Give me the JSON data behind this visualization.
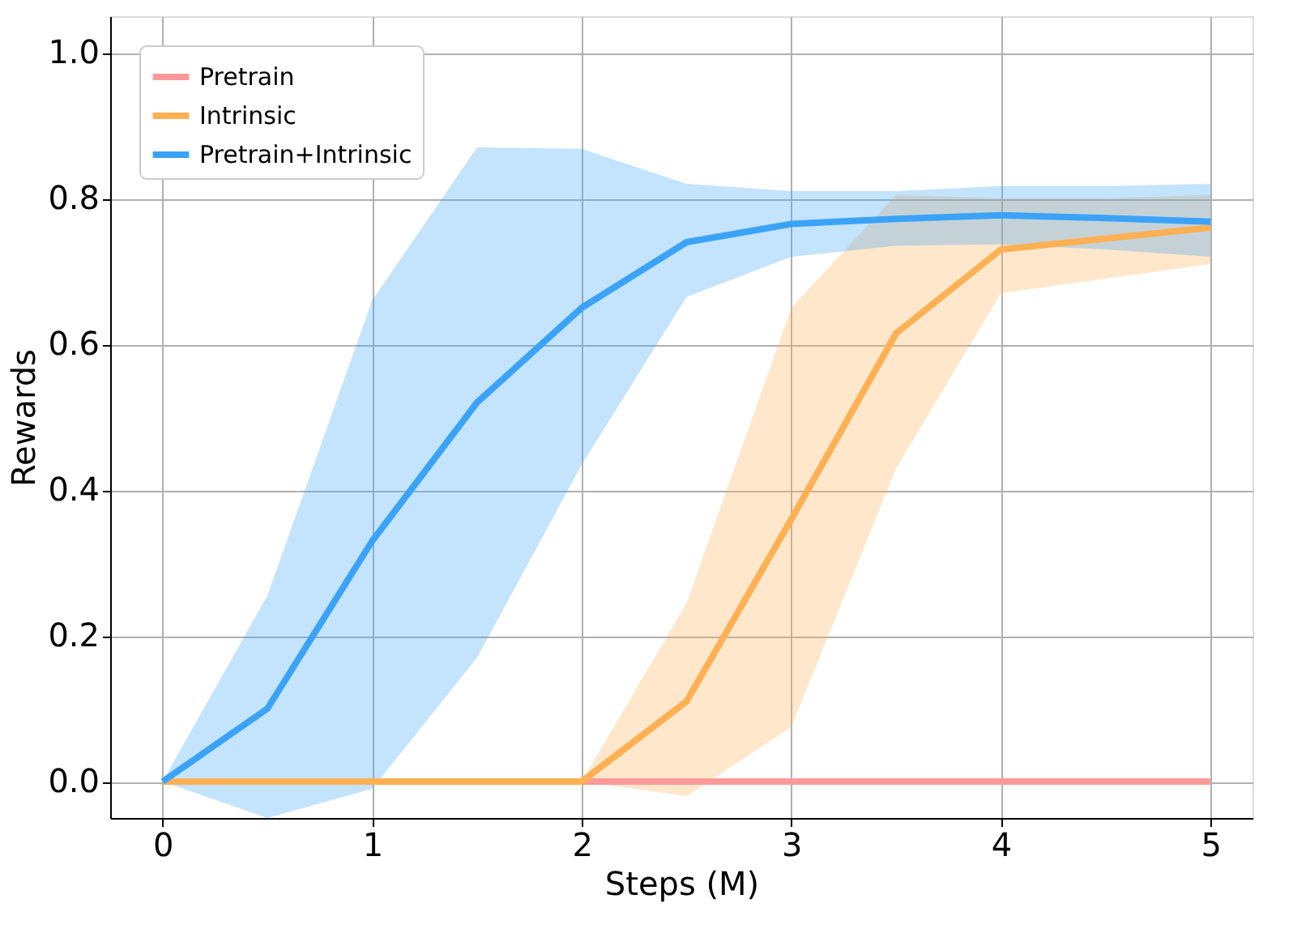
{
  "chart_data": {
    "type": "line",
    "xlabel": "Steps (M)",
    "ylabel": "Rewards",
    "x": [
      0,
      0.5,
      1,
      1.5,
      2,
      2.5,
      3,
      3.5,
      4,
      4.5,
      5
    ],
    "series": [
      {
        "name": "Pretrain",
        "color": "#ff9999",
        "values": [
          0,
          0,
          0,
          0,
          0,
          0,
          0,
          0,
          0,
          0,
          0
        ]
      },
      {
        "name": "Intrinsic",
        "color": "#ffb052",
        "values": [
          0,
          0,
          0,
          0,
          0,
          0.11,
          0.36,
          0.615,
          0.73,
          0.745,
          0.76
        ],
        "lower": [
          0,
          0,
          0,
          0,
          0,
          -0.02,
          0.075,
          0.43,
          0.67,
          0.69,
          0.71
        ],
        "upper": [
          0,
          0,
          0,
          0,
          0,
          0.245,
          0.65,
          0.805,
          0.8,
          0.8,
          0.805
        ]
      },
      {
        "name": "Pretrain+Intrinsic",
        "color": "#3ba3f7",
        "values": [
          0,
          0.1,
          0.33,
          0.52,
          0.65,
          0.74,
          0.765,
          0.772,
          0.777,
          0.773,
          0.768
        ],
        "lower": [
          0,
          -0.05,
          -0.01,
          0.17,
          0.435,
          0.665,
          0.72,
          0.735,
          0.737,
          0.73,
          0.72
        ],
        "upper": [
          0,
          0.255,
          0.66,
          0.87,
          0.868,
          0.82,
          0.81,
          0.81,
          0.817,
          0.817,
          0.82
        ]
      }
    ],
    "xlim": [
      -0.25,
      5.2
    ],
    "ylim": [
      -0.05,
      1.05
    ],
    "xticks": [
      0,
      1,
      2,
      3,
      4,
      5
    ],
    "yticks": [
      {
        "value": 0,
        "label": "0.0"
      },
      {
        "value": 0.2,
        "label": "0.2"
      },
      {
        "value": 0.4,
        "label": "0.4"
      },
      {
        "value": 0.6,
        "label": "0.6"
      },
      {
        "value": 0.8,
        "label": "0.8"
      },
      {
        "value": 1.0,
        "label": "1.0"
      }
    ],
    "grid": true,
    "legend": "top left",
    "line_style": "solid",
    "marker": "none"
  }
}
